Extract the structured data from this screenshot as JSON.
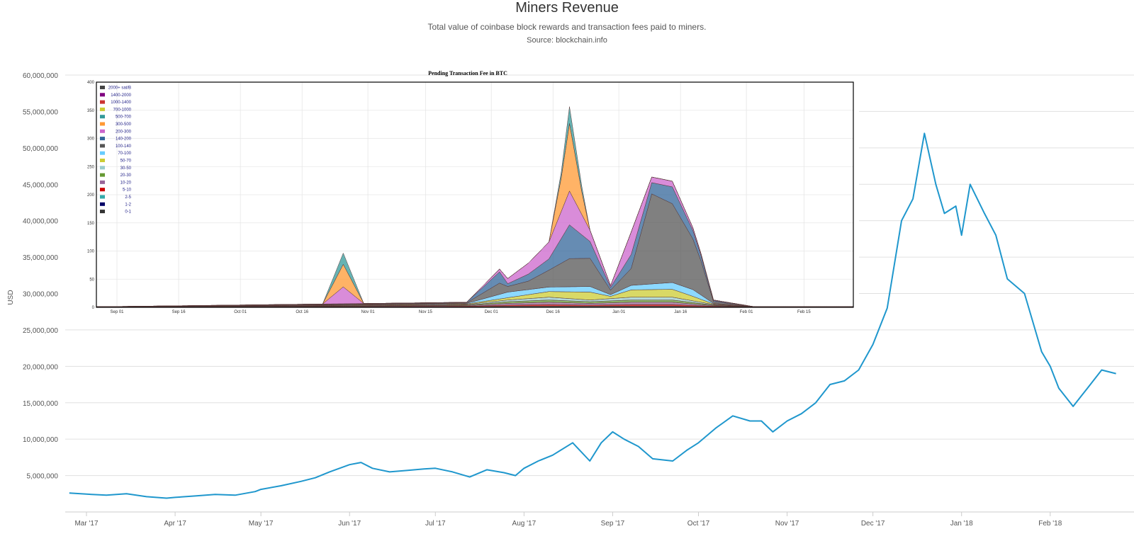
{
  "header": {
    "title": "Miners Revenue",
    "subtitle": "Total value of coinbase block rewards and transaction fees paid to miners.",
    "source": "Source: blockchain.info"
  },
  "colors": {
    "series": "#1f97cd",
    "grid": "#e0e0e0",
    "axis": "#cccccc",
    "inset_frame": "#000000"
  },
  "chart_data": [
    {
      "type": "line",
      "title": "Miners Revenue",
      "ylabel": "USD",
      "xlabel": "",
      "ylim": [
        0,
        60000000
      ],
      "yticks": [
        "5,000,000",
        "10,000,000",
        "15,000,000",
        "20,000,000",
        "25,000,000",
        "30,000,000",
        "35,000,000",
        "40,000,000",
        "45,000,000",
        "50,000,000",
        "55,000,000",
        "60,000,000"
      ],
      "ytick_values": [
        5000000,
        10000000,
        15000000,
        20000000,
        25000000,
        30000000,
        35000000,
        40000000,
        45000000,
        50000000,
        55000000,
        60000000
      ],
      "xticks": [
        "Mar '17",
        "Apr '17",
        "May '17",
        "Jun '17",
        "Jul '17",
        "Aug '17",
        "Sep '17",
        "Oct '17",
        "Nov '17",
        "Dec '17",
        "Jan '18",
        "Feb '18"
      ],
      "xtick_days": [
        0,
        31,
        61,
        92,
        122,
        153,
        184,
        214,
        245,
        275,
        306,
        337
      ],
      "x_unit": "days since Mar 1 2017",
      "grid": true,
      "legend": "none",
      "series": [
        {
          "x": [
            -6,
            0,
            7,
            14,
            21,
            28,
            31,
            38,
            45,
            52,
            59,
            61,
            68,
            75,
            80,
            85,
            92,
            96,
            100,
            106,
            112,
            118,
            122,
            128,
            134,
            140,
            146,
            150,
            153,
            158,
            163,
            170,
            176,
            180,
            184,
            188,
            193,
            198,
            205,
            210,
            214,
            220,
            226,
            232,
            236,
            240,
            245,
            250,
            255,
            260,
            265,
            270,
            275,
            280,
            285,
            289,
            293,
            297,
            300,
            304,
            306,
            309,
            314,
            318,
            322,
            328,
            331,
            334,
            337,
            340,
            345,
            350,
            355,
            360
          ],
          "values": [
            2600000,
            2450000,
            2300000,
            2500000,
            2100000,
            1900000,
            2000000,
            2200000,
            2400000,
            2300000,
            2800000,
            3100000,
            3600000,
            4200000,
            4700000,
            5500000,
            6500000,
            6800000,
            6000000,
            5500000,
            5700000,
            5900000,
            6000000,
            5500000,
            4800000,
            5800000,
            5400000,
            5000000,
            6000000,
            7000000,
            7800000,
            9500000,
            7000000,
            9500000,
            11000000,
            10000000,
            9000000,
            7300000,
            7000000,
            8500000,
            9500000,
            11500000,
            13200000,
            12500000,
            12500000,
            11000000,
            12500000,
            13500000,
            15000000,
            17500000,
            18000000,
            19500000,
            23000000,
            28000000,
            40000000,
            43000000,
            52000000,
            45000000,
            41000000,
            42000000,
            38000000,
            45000000,
            41000000,
            38000000,
            32000000,
            30000000,
            26000000,
            22000000,
            20000000,
            17000000,
            14500000,
            17000000,
            19500000,
            19000000
          ]
        }
      ]
    },
    {
      "type": "area",
      "title": "Pending Transaction Fee in BTC",
      "ylim": [
        0,
        400
      ],
      "yticks": [
        "0",
        "50",
        "100",
        "150",
        "200",
        "250",
        "300",
        "350",
        "400"
      ],
      "ytick_values": [
        0,
        50,
        100,
        150,
        200,
        250,
        300,
        350,
        400
      ],
      "xticks": [
        "Sep 01",
        "Sep 16",
        "Oct 01",
        "Oct 16",
        "Nov 01",
        "Nov 15",
        "Dec 01",
        "Dec 16",
        "Jan 01",
        "Jan 16",
        "Feb 01",
        "Feb 15"
      ],
      "xtick_days": [
        5,
        20,
        35,
        50,
        66,
        80,
        96,
        111,
        127,
        142,
        158,
        172
      ],
      "x_unit": "days since Aug 27 2017",
      "xlim": [
        0,
        184
      ],
      "legend": "top-left",
      "legend_entries": [
        {
          "label": "2000+ sat/B",
          "color": "#444444"
        },
        {
          "label": "1400-2000",
          "color": "#800080"
        },
        {
          "label": "1000-1400",
          "color": "#cc3333"
        },
        {
          "label": "700-1000",
          "color": "#cccc33"
        },
        {
          "label": "500-700",
          "color": "#339999"
        },
        {
          "label": "300-500",
          "color": "#ff9933"
        },
        {
          "label": "200-300",
          "color": "#cc66cc"
        },
        {
          "label": "140-200",
          "color": "#336699"
        },
        {
          "label": "100-140",
          "color": "#555555"
        },
        {
          "label": "70-100",
          "color": "#66ccff"
        },
        {
          "label": "50-70",
          "color": "#cccc33"
        },
        {
          "label": "30-50",
          "color": "#99cccc"
        },
        {
          "label": "20-30",
          "color": "#669933"
        },
        {
          "label": "10-20",
          "color": "#996699"
        },
        {
          "label": "5-10",
          "color": "#cc0000"
        },
        {
          "label": "2-5",
          "color": "#33aaaa"
        },
        {
          "label": "1-2",
          "color": "#000066"
        },
        {
          "label": "0-1",
          "color": "#333333"
        }
      ],
      "bands": [
        {
          "name": "0-1",
          "color": "#333333",
          "x": [
            0,
            90,
            100,
            110,
            120,
            130,
            140,
            150,
            160,
            184
          ],
          "values": [
            1,
            1,
            2,
            2,
            2,
            2,
            2,
            1,
            1,
            1
          ]
        },
        {
          "name": "5-10",
          "color": "#cc0000",
          "x": [
            0,
            90,
            100,
            110,
            120,
            130,
            140,
            150,
            160,
            184
          ],
          "values": [
            0,
            1,
            2,
            3,
            2,
            3,
            3,
            1,
            0,
            0
          ]
        },
        {
          "name": "10-20",
          "color": "#996699",
          "x": [
            0,
            90,
            100,
            110,
            120,
            130,
            140,
            150,
            160,
            184
          ],
          "values": [
            0,
            1,
            3,
            4,
            3,
            4,
            4,
            1,
            0,
            0
          ]
        },
        {
          "name": "20-30",
          "color": "#669933",
          "x": [
            0,
            90,
            100,
            110,
            120,
            130,
            140,
            150,
            160,
            184
          ],
          "values": [
            0,
            1,
            3,
            4,
            3,
            4,
            4,
            1,
            0,
            0
          ]
        },
        {
          "name": "30-50",
          "color": "#99cccc",
          "x": [
            0,
            90,
            100,
            110,
            120,
            130,
            140,
            150,
            160,
            184
          ],
          "values": [
            0,
            1,
            3,
            5,
            3,
            5,
            5,
            1,
            0,
            0
          ]
        },
        {
          "name": "50-70",
          "color": "#cccc33",
          "x": [
            0,
            90,
            100,
            110,
            120,
            125,
            130,
            140,
            145,
            150,
            160,
            184
          ],
          "values": [
            0,
            1,
            4,
            10,
            14,
            4,
            13,
            14,
            8,
            1,
            0,
            0
          ]
        },
        {
          "name": "70-100",
          "color": "#66ccff",
          "x": [
            0,
            90,
            100,
            110,
            120,
            125,
            130,
            140,
            145,
            150,
            160,
            184
          ],
          "values": [
            0,
            1,
            10,
            8,
            10,
            3,
            8,
            12,
            12,
            1,
            0,
            0
          ]
        },
        {
          "name": "100-140",
          "color": "#555555",
          "x": [
            0,
            90,
            98,
            100,
            105,
            110,
            115,
            120,
            125,
            130,
            135,
            140,
            145,
            147,
            150,
            160,
            184
          ],
          "values": [
            0,
            1,
            20,
            10,
            15,
            30,
            50,
            50,
            8,
            30,
            160,
            140,
            90,
            60,
            3,
            0,
            0
          ]
        },
        {
          "name": "140-200",
          "color": "#336699",
          "x": [
            0,
            90,
            98,
            100,
            110,
            115,
            120,
            125,
            130,
            135,
            140,
            145,
            150,
            160,
            184
          ],
          "values": [
            0,
            1,
            20,
            5,
            20,
            60,
            30,
            5,
            25,
            20,
            30,
            15,
            2,
            0,
            0
          ]
        },
        {
          "name": "200-300",
          "color": "#cc66cc",
          "x": [
            0,
            55,
            60,
            65,
            90,
            98,
            110,
            115,
            120,
            125,
            130,
            135,
            140,
            145,
            150,
            160,
            184
          ],
          "values": [
            0,
            0,
            30,
            0,
            0,
            5,
            30,
            60,
            20,
            3,
            40,
            10,
            10,
            5,
            1,
            0,
            0
          ]
        },
        {
          "name": "300-500",
          "color": "#ff9933",
          "x": [
            0,
            55,
            60,
            65,
            110,
            113,
            115,
            118,
            120,
            184
          ],
          "values": [
            0,
            0,
            40,
            0,
            0,
            60,
            120,
            40,
            0,
            0
          ]
        },
        {
          "name": "500-700",
          "color": "#339999",
          "x": [
            0,
            55,
            60,
            65,
            110,
            113,
            115,
            118,
            120,
            184
          ],
          "values": [
            0,
            0,
            20,
            0,
            0,
            10,
            30,
            10,
            0,
            0
          ]
        }
      ]
    }
  ]
}
